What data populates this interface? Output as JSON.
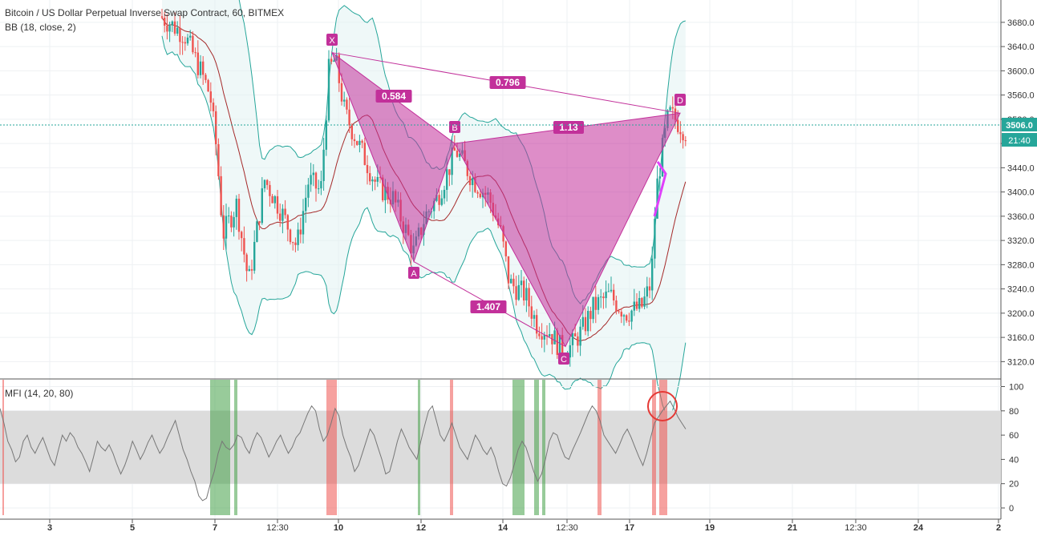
{
  "header": {
    "title": "Bitcoin / US Dollar Perpetual Inverse Swap Contract, 60, BITMEX",
    "indicator": "BB (18, close, 2)"
  },
  "mfi": {
    "label": "MFI (14, 20, 80)"
  },
  "price_badge": "3506.0",
  "time_badge": "21:40",
  "colors": {
    "up": "#26a69a",
    "down": "#ef5350",
    "pattern": "#c2309a",
    "bb_band": "#26a69a",
    "bb_basis": "#a52a2a",
    "overbought": "#ef5350",
    "oversold": "#43a047"
  },
  "chart_data": [
    {
      "type": "candlestick",
      "title": "Bitcoin / US Dollar Perpetual Inverse Swap Contract, 60, BITMEX",
      "x_ticks": [
        "3",
        "5",
        "7",
        "12:30",
        "10",
        "12",
        "14",
        "12:30",
        "17",
        "19",
        "21",
        "12:30",
        "24",
        "2"
      ],
      "y_ticks": [
        3120,
        3160,
        3200,
        3240,
        3280,
        3320,
        3360,
        3400,
        3440,
        3480,
        3520,
        3560,
        3600,
        3640,
        3680
      ],
      "ylim": [
        3100,
        3700
      ],
      "last_price": 3506.0,
      "pattern": {
        "name": "XABCD",
        "points": [
          {
            "label": "X",
            "x": "9 evening",
            "y": 3630
          },
          {
            "label": "A",
            "x": "11 evening",
            "y": 3285
          },
          {
            "label": "B",
            "x": "12 afternoon",
            "y": 3480
          },
          {
            "label": "C",
            "x": "15 early",
            "y": 3145
          },
          {
            "label": "D",
            "x": "18 early",
            "y": 3530
          }
        ],
        "ratios": [
          {
            "value": "0.584",
            "between": "XAB"
          },
          {
            "value": "0.796",
            "between": "XD"
          },
          {
            "value": "1.13",
            "between": "BD"
          },
          {
            "value": "1.407",
            "between": "AC"
          }
        ]
      }
    },
    {
      "type": "line",
      "title": "MFI (14, 20, 80)",
      "y_ticks": [
        0,
        20,
        40,
        60,
        80,
        100
      ],
      "ylim": [
        -5,
        105
      ],
      "bands": {
        "lower": 20,
        "upper": 80
      },
      "series": [
        {
          "values": [
            82,
            70,
            55,
            48,
            38,
            42,
            55,
            60,
            50,
            45,
            52,
            58,
            49,
            40,
            35,
            48,
            60,
            55,
            62,
            58,
            50,
            45,
            38,
            30,
            42,
            55,
            50,
            47,
            52,
            45,
            36,
            28,
            35,
            44,
            55,
            48,
            40,
            46,
            54,
            60,
            52,
            45,
            50,
            58,
            65,
            72,
            60,
            48,
            40,
            30,
            22,
            10,
            6,
            8,
            20,
            30,
            45,
            55,
            50,
            48,
            52,
            60,
            58,
            50,
            45,
            55,
            62,
            58,
            50,
            42,
            48,
            55,
            60,
            52,
            45,
            50,
            58,
            62,
            70,
            78,
            84,
            80,
            65,
            55,
            60,
            70,
            82,
            76,
            60,
            50,
            42,
            30,
            35,
            45,
            55,
            65,
            60,
            50,
            40,
            28,
            30,
            42,
            55,
            65,
            58,
            50,
            45,
            40,
            55,
            68,
            80,
            84,
            72,
            60,
            55,
            62,
            70,
            60,
            50,
            45,
            40,
            50,
            60,
            55,
            48,
            44,
            50,
            42,
            30,
            20,
            18,
            25,
            36,
            48,
            55,
            50,
            40,
            30,
            22,
            28,
            40,
            55,
            62,
            60,
            50,
            42,
            40,
            48,
            55,
            62,
            70,
            78,
            84,
            80,
            72,
            60,
            55,
            50,
            45,
            52,
            60,
            65,
            58,
            50,
            42,
            35,
            45,
            58,
            70,
            75,
            80,
            84,
            88,
            82,
            75,
            70,
            65
          ]
        }
      ]
    }
  ]
}
